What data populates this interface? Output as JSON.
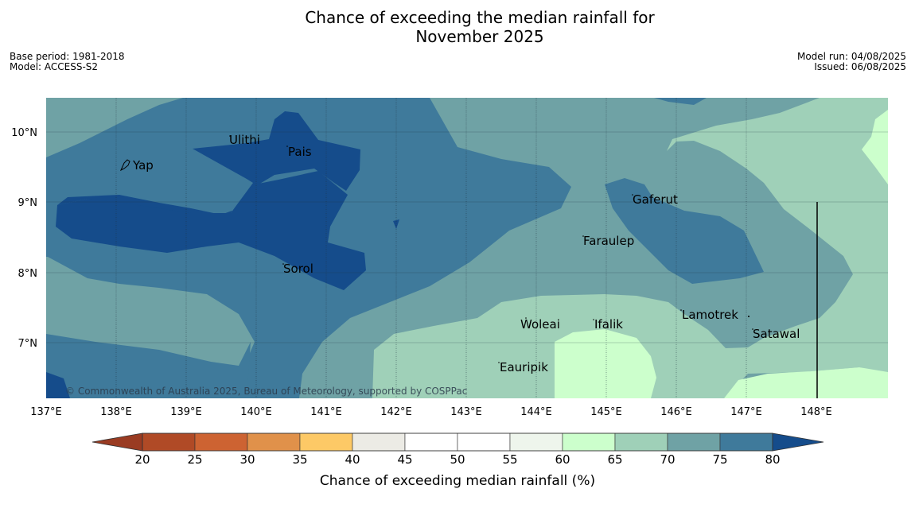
{
  "title_line1": "Chance of exceeding the median rainfall for",
  "title_line2": "November 2025",
  "meta": {
    "base_period": "Base period: 1981-2018",
    "model": "Model: ACCESS-S2",
    "model_run": "Model run: 04/08/2025",
    "issued": "Issued: 06/08/2025"
  },
  "map": {
    "lon_range": [
      137,
      149
    ],
    "lat_range": [
      6.2,
      10.5
    ],
    "lon_ticks": [
      "137°E",
      "138°E",
      "139°E",
      "140°E",
      "141°E",
      "142°E",
      "143°E",
      "144°E",
      "145°E",
      "146°E",
      "147°E",
      "148°E"
    ],
    "lat_ticks": [
      "10°N",
      "9°N",
      "8°N",
      "7°N"
    ],
    "places": [
      "Yap",
      "Ulithi",
      "Pais",
      "Gaferut",
      "Faraulep",
      "Sorol",
      "Lamotrek",
      "Woleai",
      "Ifalik",
      "Satawal",
      "Eauripik"
    ],
    "copyright": "© Commonwealth of Australia 2025, Bureau of Meteorology, supported by COSPPac"
  },
  "colorbar": {
    "ticks": [
      "20",
      "25",
      "30",
      "35",
      "40",
      "45",
      "50",
      "55",
      "60",
      "65",
      "70",
      "75",
      "80"
    ],
    "label": "Chance of exceeding median rainfall (%)",
    "colors": [
      "#b04a26",
      "#cd6332",
      "#e0914a",
      "#fdc966",
      "#ecebe5",
      "#ffffff",
      "#ffffff",
      "#eef5ec",
      "#ccffcc",
      "#9fd0b8",
      "#6fa2a5",
      "#3f7a9b"
    ],
    "under_color": "#9a3b22",
    "over_color": "#154c8b"
  },
  "colors": {
    "c80": "#154c8b",
    "c75": "#3f7a9b",
    "c70": "#6fa2a5",
    "c65": "#9fd0b8",
    "c60": "#ccffcc"
  }
}
